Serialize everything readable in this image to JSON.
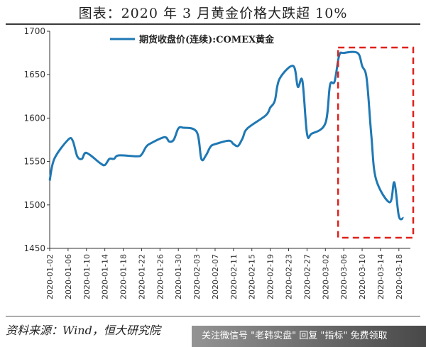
{
  "title": "图表：2020 年 3 月黄金价格大跌超 10%",
  "source": "资料来源：Wind，恒大研究院",
  "watermark": "关注微信号 \"老韩实盘\" 回复 \"指标\" 免费领取",
  "colors": {
    "line": "#1f78b4",
    "highlight": "#e0201a",
    "axis": "#333333"
  },
  "chart_data": {
    "type": "line",
    "legend_position": "top-center",
    "grid": false,
    "ylim": [
      1450,
      1700
    ],
    "yticks": [
      1450,
      1500,
      1550,
      1600,
      1650,
      1700
    ],
    "xlabel": "",
    "ylabel": "",
    "xticks": [
      "2020-01-02",
      "2020-01-06",
      "2020-01-10",
      "2020-01-14",
      "2020-01-18",
      "2020-01-22",
      "2020-01-26",
      "2020-01-30",
      "2020-02-03",
      "2020-02-07",
      "2020-02-11",
      "2020-02-15",
      "2020-02-19",
      "2020-02-23",
      "2020-02-27",
      "2020-03-02",
      "2020-03-06",
      "2020-03-10",
      "2020-03-14",
      "2020-03-18"
    ],
    "series": [
      {
        "name": "期货收盘价(连续):COMEX黄金",
        "x": [
          "2020-01-02",
          "2020-01-03",
          "2020-01-06",
          "2020-01-07",
          "2020-01-08",
          "2020-01-09",
          "2020-01-10",
          "2020-01-13",
          "2020-01-14",
          "2020-01-15",
          "2020-01-16",
          "2020-01-17",
          "2020-01-21",
          "2020-01-22",
          "2020-01-23",
          "2020-01-24",
          "2020-01-27",
          "2020-01-28",
          "2020-01-29",
          "2020-01-30",
          "2020-01-31",
          "2020-02-03",
          "2020-02-04",
          "2020-02-05",
          "2020-02-06",
          "2020-02-07",
          "2020-02-10",
          "2020-02-11",
          "2020-02-12",
          "2020-02-13",
          "2020-02-14",
          "2020-02-18",
          "2020-02-19",
          "2020-02-20",
          "2020-02-21",
          "2020-02-24",
          "2020-02-25",
          "2020-02-26",
          "2020-02-27",
          "2020-02-28",
          "2020-03-02",
          "2020-03-03",
          "2020-03-04",
          "2020-03-05",
          "2020-03-06",
          "2020-03-09",
          "2020-03-10",
          "2020-03-11",
          "2020-03-12",
          "2020-03-13",
          "2020-03-16",
          "2020-03-17",
          "2020-03-18",
          "2020-03-19"
        ],
        "values": [
          1528,
          1553,
          1575,
          1574,
          1556,
          1553,
          1560,
          1548,
          1546,
          1553,
          1553,
          1557,
          1556,
          1558,
          1567,
          1571,
          1578,
          1573,
          1575,
          1588,
          1589,
          1584,
          1553,
          1557,
          1567,
          1570,
          1574,
          1570,
          1568,
          1577,
          1588,
          1603,
          1612,
          1620,
          1645,
          1660,
          1636,
          1643,
          1582,
          1582,
          1594,
          1638,
          1642,
          1672,
          1675,
          1675,
          1660,
          1645,
          1580,
          1530,
          1503,
          1526,
          1487,
          1485
        ]
      }
    ],
    "highlight": {
      "from": "2020-03-06",
      "to": "2020-03-19",
      "style": "dashed-box"
    }
  }
}
